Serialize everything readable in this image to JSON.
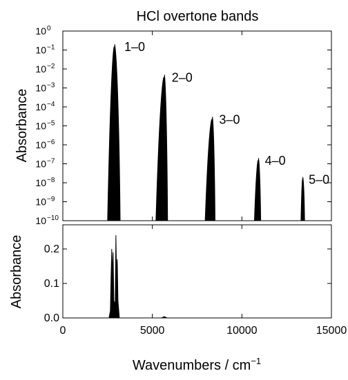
{
  "chart_data": {
    "title": "HCl overtone bands",
    "xlabel": "Wavenumbers / cm",
    "xlabel_superscript": "−1",
    "xlim": [
      0,
      15000
    ],
    "x_ticks": [
      0,
      5000,
      10000,
      15000
    ],
    "x_tick_labels": [
      "0",
      "5000",
      "10000",
      "15000"
    ],
    "panels": [
      {
        "type": "line",
        "ylabel": "Absorbance",
        "yscale": "log",
        "ylim_exponent": [
          -10,
          0
        ],
        "y_tick_exponents": [
          0,
          -1,
          -2,
          -3,
          -4,
          -5,
          -6,
          -7,
          -8,
          -9,
          -10
        ],
        "y_tick_base": "10",
        "bands": [
          {
            "label": "1–0",
            "center": 2886,
            "x_min": 2500,
            "x_max": 3200,
            "peak_absorbance": 0.2
          },
          {
            "label": "2–0",
            "center": 5668,
            "x_min": 5200,
            "x_max": 5850,
            "peak_absorbance": 0.005
          },
          {
            "label": "3–0",
            "center": 8347,
            "x_min": 7950,
            "x_max": 8500,
            "peak_absorbance": 3e-05
          },
          {
            "label": "4–0",
            "center": 10923,
            "x_min": 10700,
            "x_max": 11050,
            "peak_absorbance": 2e-07
          },
          {
            "label": "5–0",
            "center": 13396,
            "x_min": 13300,
            "x_max": 13500,
            "peak_absorbance": 2e-08
          }
        ]
      },
      {
        "type": "line",
        "ylabel": "Absorbance",
        "yscale": "linear",
        "ylim": [
          0,
          0.27
        ],
        "y_ticks": [
          0,
          0.1,
          0.2
        ],
        "y_tick_labels": [
          "0.0",
          "0.1",
          "0.2"
        ],
        "peak_absorbance": 0.24
      }
    ]
  }
}
